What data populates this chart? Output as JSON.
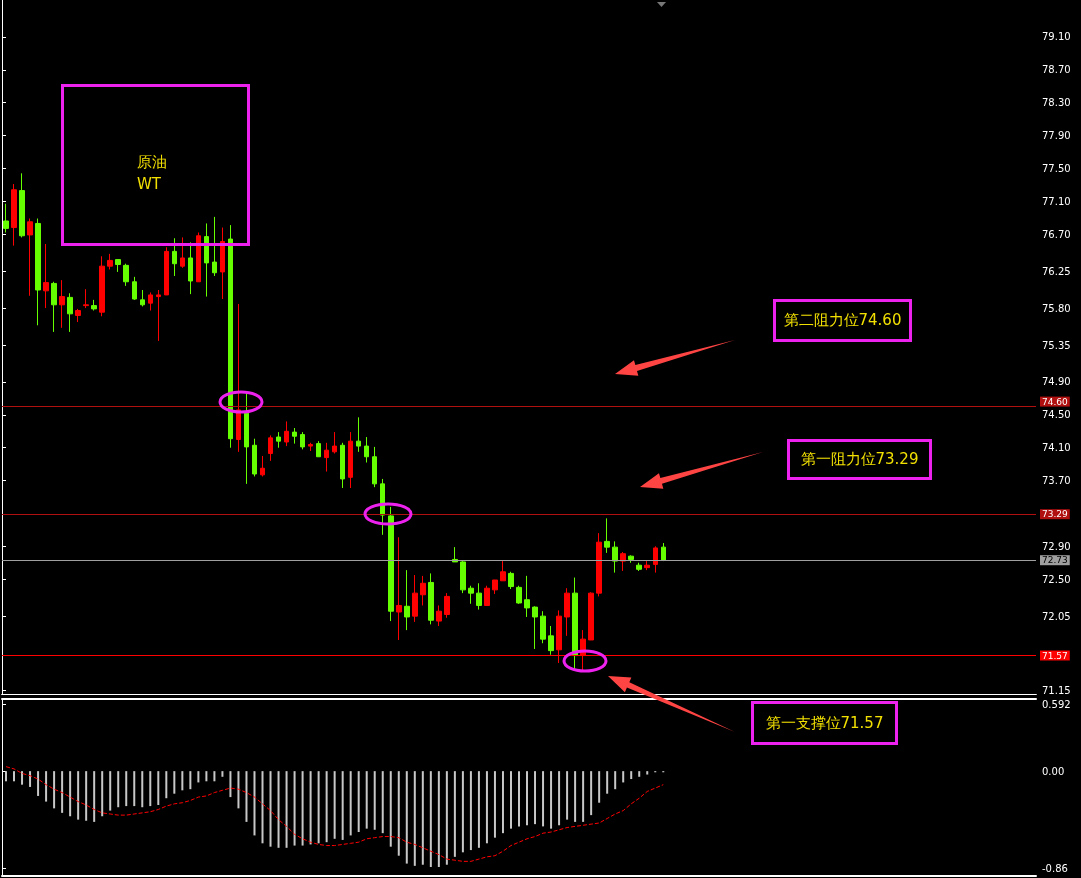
{
  "chart_data": [
    {
      "type": "candlestick",
      "title": "原油\nWT",
      "tick_labels": "y",
      "categories": [
        null,
        null,
        null,
        null,
        null,
        null,
        null,
        null,
        null,
        null,
        null,
        null,
        null,
        null,
        null,
        null,
        null,
        null,
        null,
        null,
        null,
        null,
        null,
        null,
        null,
        null,
        null,
        null,
        null,
        null,
        null,
        null,
        null,
        null,
        null,
        null,
        null,
        null,
        null,
        null,
        null,
        null,
        null,
        null,
        null,
        null,
        null,
        null,
        null,
        null,
        null,
        null,
        null,
        null,
        null,
        null,
        null,
        null,
        null,
        null,
        null,
        null,
        null,
        null,
        null,
        null,
        null,
        null,
        null,
        null,
        null,
        null,
        null,
        null,
        null,
        null,
        null,
        null,
        null,
        null,
        null,
        null,
        null,
        null,
        null,
        null,
        null,
        null,
        null,
        null,
        null,
        null,
        null,
        null,
        null,
        null,
        null,
        null,
        null,
        null,
        null,
        null,
        null,
        null,
        null,
        null,
        null,
        null,
        null,
        null,
        null,
        null,
        null,
        null,
        null,
        null,
        null,
        null,
        null,
        null,
        null,
        null,
        null,
        null,
        null,
        null,
        null,
        null,
        null
      ],
      "ohlc": [
        [
          76.86,
          77.07,
          76.72,
          76.77
        ],
        [
          76.78,
          77.31,
          76.56,
          77.24
        ],
        [
          77.23,
          77.44,
          76.66,
          76.68
        ],
        [
          76.69,
          76.89,
          75.95,
          76.85
        ],
        [
          76.83,
          76.89,
          75.59,
          76.02
        ],
        [
          76.01,
          76.58,
          75.8,
          76.11
        ],
        [
          76.1,
          76.12,
          75.51,
          75.84
        ],
        [
          75.84,
          76.14,
          75.56,
          75.94
        ],
        [
          75.93,
          75.98,
          75.51,
          75.73
        ],
        [
          75.71,
          75.79,
          75.63,
          75.77
        ],
        [
          75.83,
          76.03,
          75.8,
          75.84
        ],
        [
          75.83,
          75.9,
          75.77,
          75.79
        ],
        [
          75.75,
          76.43,
          75.7,
          76.31
        ],
        [
          76.31,
          76.46,
          76.27,
          76.38
        ],
        [
          76.39,
          76.39,
          76.24,
          76.33
        ],
        [
          76.32,
          76.34,
          76.07,
          76.12
        ],
        [
          76.12,
          76.18,
          75.9,
          75.91
        ],
        [
          75.9,
          76.02,
          75.82,
          75.84
        ],
        [
          75.86,
          75.99,
          75.77,
          75.96
        ],
        [
          75.94,
          76.02,
          75.4,
          75.96
        ],
        [
          75.96,
          76.54,
          75.96,
          76.49
        ],
        [
          76.49,
          76.65,
          76.19,
          76.34
        ],
        [
          76.31,
          76.66,
          76.29,
          76.41
        ],
        [
          76.41,
          76.6,
          75.97,
          76.13
        ],
        [
          76.12,
          76.72,
          76.12,
          76.68
        ],
        [
          76.67,
          76.83,
          75.94,
          76.35
        ],
        [
          76.36,
          76.91,
          76.19,
          76.23
        ],
        [
          76.24,
          76.78,
          75.91,
          76.61
        ],
        [
          76.64,
          76.81,
          74.1,
          74.21
        ],
        [
          74.2,
          75.85,
          74.05,
          74.56
        ],
        [
          74.52,
          74.76,
          73.66,
          74.11
        ],
        [
          74.13,
          74.21,
          73.75,
          73.78
        ],
        [
          73.77,
          74.0,
          73.75,
          73.85
        ],
        [
          74.03,
          74.25,
          73.94,
          74.22
        ],
        [
          74.23,
          74.29,
          74.1,
          74.18
        ],
        [
          74.17,
          74.42,
          74.12,
          74.3
        ],
        [
          74.29,
          74.34,
          74.15,
          74.24
        ],
        [
          74.26,
          74.29,
          74.08,
          74.11
        ],
        [
          74.12,
          74.16,
          74.06,
          74.14
        ],
        [
          74.15,
          74.18,
          73.99,
          73.99
        ],
        [
          73.98,
          74.16,
          73.81,
          74.07
        ],
        [
          74.05,
          74.29,
          74.03,
          74.12
        ],
        [
          74.13,
          74.16,
          73.61,
          73.72
        ],
        [
          73.74,
          74.29,
          73.61,
          74.18
        ],
        [
          74.18,
          74.47,
          74.05,
          74.12
        ],
        [
          74.12,
          74.23,
          73.92,
          73.99
        ],
        [
          73.99,
          74.11,
          73.62,
          73.66
        ],
        [
          73.66,
          73.72,
          73.04,
          73.28
        ],
        [
          73.27,
          73.38,
          71.99,
          72.11
        ],
        [
          72.1,
          73.01,
          71.76,
          72.18
        ],
        [
          72.17,
          72.61,
          71.88,
          72.04
        ],
        [
          72.05,
          72.55,
          71.98,
          72.33
        ],
        [
          72.31,
          72.54,
          72.18,
          72.45
        ],
        [
          72.46,
          72.57,
          71.95,
          72.0
        ],
        [
          71.99,
          72.18,
          71.93,
          72.11
        ],
        [
          72.07,
          72.33,
          72.03,
          72.29
        ],
        [
          72.74,
          72.89,
          72.71,
          72.71
        ],
        [
          72.71,
          72.73,
          72.33,
          72.37
        ],
        [
          72.39,
          72.42,
          72.2,
          72.33
        ],
        [
          72.33,
          72.45,
          72.13,
          72.18
        ],
        [
          72.18,
          72.42,
          72.18,
          72.39
        ],
        [
          72.37,
          72.49,
          72.32,
          72.49
        ],
        [
          72.48,
          72.72,
          72.48,
          72.59
        ],
        [
          72.57,
          72.59,
          72.38,
          72.41
        ],
        [
          72.4,
          72.42,
          72.2,
          72.21
        ],
        [
          72.25,
          72.54,
          72.04,
          72.15
        ],
        [
          72.16,
          72.17,
          71.65,
          72.04
        ],
        [
          72.05,
          72.11,
          71.72,
          71.77
        ],
        [
          71.81,
          71.93,
          71.58,
          71.63
        ],
        [
          71.64,
          72.12,
          71.48,
          72.05
        ],
        [
          72.04,
          72.39,
          71.81,
          72.33
        ],
        [
          72.33,
          72.52,
          71.39,
          71.57
        ],
        [
          71.57,
          71.88,
          71.37,
          71.77
        ],
        [
          71.76,
          72.34,
          71.76,
          72.33
        ],
        [
          72.33,
          73.06,
          72.29,
          72.95
        ],
        [
          72.96,
          73.24,
          72.82,
          72.89
        ],
        [
          72.89,
          72.96,
          72.58,
          72.72
        ],
        [
          72.72,
          72.83,
          72.6,
          72.81
        ],
        [
          72.78,
          72.79,
          72.7,
          72.74
        ],
        [
          72.67,
          72.7,
          72.6,
          72.62
        ],
        [
          72.64,
          72.72,
          72.61,
          72.67
        ],
        [
          72.68,
          72.9,
          72.58,
          72.88
        ],
        [
          72.89,
          72.94,
          72.72,
          72.73
        ],
        null,
        null,
        null,
        null,
        null,
        null,
        null,
        null,
        null,
        null,
        null,
        null,
        null,
        null,
        null,
        null,
        null,
        null,
        null,
        null,
        null,
        null,
        null,
        null,
        null,
        null,
        null,
        null,
        null,
        null,
        null,
        null,
        null,
        null,
        null,
        null,
        null,
        null,
        null,
        null,
        null,
        null,
        null,
        null,
        null,
        null
      ],
      "colors": [
        "#66ff00",
        "#ff0000",
        "#66ff00",
        "#ff0000",
        "#66ff00",
        "#ff0000",
        "#66ff00",
        "#ff0000",
        "#66ff00",
        "#ff0000",
        "#ff0000",
        "#66ff00",
        "#ff0000",
        "#ff0000",
        "#66ff00",
        "#66ff00",
        "#66ff00",
        "#66ff00",
        "#ff0000",
        "#ff0000",
        "#ff0000",
        "#66ff00",
        "#ff0000",
        "#66ff00",
        "#ff0000",
        "#66ff00",
        "#66ff00",
        "#ff0000",
        "#66ff00",
        "#ff0000",
        "#66ff00",
        "#66ff00",
        "#ff0000",
        "#ff0000",
        "#66ff00",
        "#ff0000",
        "#66ff00",
        "#66ff00",
        "#ff0000",
        "#66ff00",
        "#ff0000",
        "#ff0000",
        "#66ff00",
        "#ff0000",
        "#66ff00",
        "#66ff00",
        "#66ff00",
        "#66ff00",
        "#66ff00",
        "#ff0000",
        "#66ff00",
        "#ff0000",
        "#ff0000",
        "#66ff00",
        "#ff0000",
        "#ff0000",
        "#66ff00",
        "#66ff00",
        "#66ff00",
        "#66ff00",
        "#ff0000",
        "#ff0000",
        "#ff0000",
        "#66ff00",
        "#66ff00",
        "#66ff00",
        "#66ff00",
        "#66ff00",
        "#66ff00",
        "#ff0000",
        "#ff0000",
        "#66ff00",
        "#ff0000",
        "#ff0000",
        "#ff0000",
        "#66ff00",
        "#66ff00",
        "#ff0000",
        "#66ff00",
        "#66ff00",
        "#ff0000",
        "#ff0000",
        "#66ff00",
        null,
        null,
        null,
        null,
        null,
        null,
        null,
        null,
        null,
        null,
        null,
        null,
        null,
        null,
        null,
        null,
        null,
        null,
        null,
        null,
        null,
        null,
        null,
        null,
        null,
        null,
        null,
        null,
        null,
        null,
        null,
        null,
        null,
        null,
        null,
        null,
        null,
        null,
        null,
        null,
        null,
        null,
        null,
        null,
        null,
        null
      ],
      "ylim": [
        71.09,
        79.55
      ],
      "yticks": [
        {
          "value": 79.1,
          "label": "79.10"
        },
        {
          "value": 78.7,
          "label": "78.70"
        },
        {
          "value": 78.3,
          "label": "78.30"
        },
        {
          "value": 77.9,
          "label": "77.90"
        },
        {
          "value": 77.5,
          "label": "77.50"
        },
        {
          "value": 77.1,
          "label": "77.10"
        },
        {
          "value": 76.7,
          "label": "76.70"
        },
        76.25,
        {
          "value": 75.8,
          "label": "75.80"
        },
        75.35,
        {
          "value": 74.9,
          "label": "74.90"
        },
        {
          "value": 74.5,
          "label": "74.50"
        },
        {
          "value": 74.1,
          "label": "74.10"
        },
        {
          "value": 73.7,
          "label": "73.70"
        },
        {
          "value": 72.9,
          "label": "72.90"
        },
        {
          "value": 72.5,
          "label": "72.50"
        },
        72.05,
        71.15
      ],
      "ref_lines": [
        {
          "axis": "y",
          "value": 74.6,
          "label": "74.60",
          "color": "#b01010"
        },
        {
          "axis": "y",
          "value": 73.29,
          "label": "73.29",
          "color": "#b01010"
        },
        {
          "axis": "y",
          "value": 72.73,
          "label": "72.73",
          "color": "#a0a0a0"
        },
        {
          "axis": "y",
          "value": 71.57,
          "label": "71.57",
          "color": "#ff0000"
        }
      ],
      "annotations": [
        "第二阻力位74.60",
        "第一阻力位73.29",
        "第一支撑位71.57"
      ]
    },
    {
      "type": "bar",
      "tick_labels": "y",
      "marker": "none",
      "categories": [
        null,
        null,
        null,
        null,
        null,
        null,
        null,
        null,
        null,
        null,
        null,
        null,
        null,
        null,
        null,
        null,
        null,
        null,
        null,
        null,
        null,
        null,
        null,
        null,
        null,
        null,
        null,
        null,
        null,
        null,
        null,
        null,
        null,
        null,
        null,
        null,
        null,
        null,
        null,
        null,
        null,
        null,
        null,
        null,
        null,
        null,
        null,
        null,
        null,
        null,
        null,
        null,
        null,
        null,
        null,
        null,
        null,
        null,
        null,
        null,
        null,
        null,
        null,
        null,
        null,
        null,
        null,
        null,
        null,
        null,
        null,
        null,
        null,
        null,
        null,
        null,
        null,
        null,
        null,
        null,
        null,
        null,
        null,
        null,
        null,
        null,
        null,
        null,
        null,
        null,
        null,
        null,
        null,
        null,
        null,
        null,
        null,
        null,
        null,
        null,
        null,
        null,
        null,
        null,
        null,
        null,
        null,
        null,
        null,
        null,
        null,
        null,
        null,
        null,
        null,
        null,
        null,
        null,
        null,
        null,
        null,
        null,
        null,
        null,
        null,
        null,
        null,
        null,
        null
      ],
      "series": [
        {
          "type": "bar",
          "color": "#c8c8c8",
          "values": [
            -0.09,
            -0.09,
            -0.12,
            -0.14,
            -0.22,
            -0.27,
            -0.33,
            -0.37,
            -0.4,
            -0.43,
            -0.44,
            -0.45,
            -0.4,
            -0.35,
            -0.32,
            -0.31,
            -0.31,
            -0.32,
            -0.31,
            -0.3,
            -0.24,
            -0.2,
            -0.17,
            -0.16,
            -0.1,
            -0.09,
            -0.09,
            -0.05,
            -0.23,
            -0.33,
            -0.45,
            -0.57,
            -0.64,
            -0.67,
            -0.68,
            -0.68,
            -0.66,
            -0.66,
            -0.65,
            -0.64,
            -0.63,
            -0.6,
            -0.61,
            -0.57,
            -0.54,
            -0.51,
            -0.52,
            -0.55,
            -0.67,
            -0.75,
            -0.82,
            -0.84,
            -0.83,
            -0.85,
            -0.85,
            -0.83,
            -0.76,
            -0.72,
            -0.7,
            -0.68,
            -0.64,
            -0.59,
            -0.55,
            -0.51,
            -0.49,
            -0.48,
            -0.47,
            -0.49,
            -0.51,
            -0.48,
            -0.43,
            -0.45,
            -0.45,
            -0.39,
            -0.28,
            -0.2,
            -0.16,
            -0.1,
            -0.07,
            -0.05,
            -0.03,
            -0.01,
            -0.01,
            null,
            null,
            null,
            null,
            null,
            null,
            null,
            null,
            null,
            null,
            null,
            null,
            null,
            null,
            null,
            null,
            null,
            null,
            null,
            null,
            null,
            null,
            null,
            null,
            null,
            null,
            null,
            null,
            null,
            null,
            null,
            null,
            null,
            null,
            null,
            null,
            null,
            null,
            null,
            null,
            null,
            null,
            null,
            null,
            null,
            null
          ]
        },
        {
          "type": "line",
          "color": "#ff0000",
          "line_style": "dashed",
          "values": [
            0.04,
            0.02,
            -0.02,
            -0.04,
            -0.07,
            -0.12,
            -0.16,
            -0.19,
            -0.23,
            -0.27,
            -0.3,
            -0.34,
            -0.37,
            -0.38,
            -0.39,
            -0.39,
            -0.38,
            -0.37,
            -0.36,
            -0.34,
            -0.31,
            -0.29,
            -0.28,
            -0.26,
            -0.23,
            -0.22,
            -0.19,
            -0.17,
            -0.15,
            -0.16,
            -0.19,
            -0.23,
            -0.29,
            -0.35,
            -0.43,
            -0.49,
            -0.56,
            -0.6,
            -0.63,
            -0.65,
            -0.66,
            -0.66,
            -0.65,
            -0.64,
            -0.63,
            -0.6,
            -0.59,
            -0.58,
            -0.58,
            -0.59,
            -0.63,
            -0.65,
            -0.68,
            -0.71,
            -0.74,
            -0.78,
            -0.79,
            -0.8,
            -0.8,
            -0.78,
            -0.76,
            -0.75,
            -0.71,
            -0.66,
            -0.63,
            -0.6,
            -0.58,
            -0.55,
            -0.54,
            -0.52,
            -0.5,
            -0.49,
            -0.48,
            -0.47,
            -0.46,
            -0.42,
            -0.38,
            -0.35,
            -0.29,
            -0.24,
            -0.18,
            -0.15,
            -0.12,
            null,
            null,
            null,
            null,
            null,
            null,
            null,
            null,
            null,
            null,
            null,
            null,
            null,
            null,
            null,
            null,
            null,
            null,
            null,
            null,
            null,
            null,
            null,
            null,
            null,
            null,
            null,
            null,
            null,
            null,
            null,
            null,
            null,
            null,
            null,
            null,
            null,
            null,
            null,
            null,
            null,
            null,
            null,
            null,
            null,
            null
          ]
        }
      ],
      "ylim": [
        -0.93,
        0.64
      ],
      "yticks": [
        0.592,
        {
          "value": 0,
          "label": "0.00"
        },
        -0.86
      ]
    }
  ]
}
